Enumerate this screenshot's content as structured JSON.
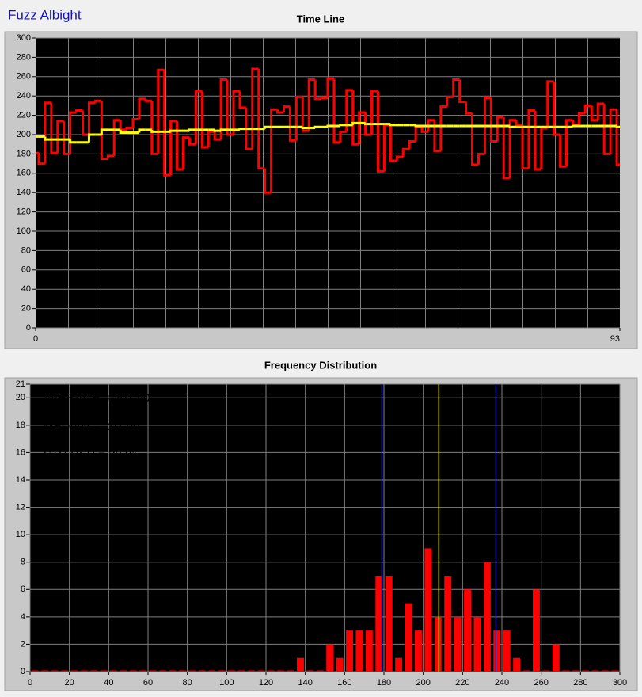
{
  "window_title": "Fuzz Albight",
  "chart_data": [
    {
      "type": "line",
      "title": "Time Line",
      "x": [
        0,
        1,
        2,
        3,
        4,
        5,
        6,
        7,
        8,
        9,
        10,
        11,
        12,
        13,
        14,
        15,
        16,
        17,
        18,
        19,
        20,
        21,
        22,
        23,
        24,
        25,
        26,
        27,
        28,
        29,
        30,
        31,
        32,
        33,
        34,
        35,
        36,
        37,
        38,
        39,
        40,
        41,
        42,
        43,
        44,
        45,
        46,
        47,
        48,
        49,
        50,
        51,
        52,
        53,
        54,
        55,
        56,
        57,
        58,
        59,
        60,
        61,
        62,
        63,
        64,
        65,
        66,
        67,
        68,
        69,
        70,
        71,
        72,
        73,
        74,
        75,
        76,
        77,
        78,
        79,
        80,
        81,
        82,
        83,
        84,
        85,
        86,
        87,
        88,
        89,
        90,
        91,
        92,
        93
      ],
      "series": [
        {
          "color": "#ff0000",
          "values": [
            181,
            170,
            233,
            181,
            214,
            180,
            223,
            225,
            200,
            233,
            235,
            175,
            178,
            215,
            205,
            207,
            216,
            237,
            235,
            180,
            267,
            158,
            214,
            164,
            197,
            190,
            245,
            187,
            203,
            195,
            257,
            200,
            245,
            228,
            185,
            268,
            165,
            140,
            226,
            223,
            229,
            194,
            239,
            204,
            257,
            237,
            238,
            258,
            192,
            203,
            246,
            190,
            223,
            200,
            245,
            162,
            210,
            173,
            177,
            185,
            193,
            208,
            203,
            215,
            183,
            229,
            239,
            257,
            234,
            222,
            169,
            180,
            238,
            193,
            218,
            155,
            215,
            210,
            165,
            225,
            164,
            207,
            255,
            200,
            167,
            215,
            210,
            222,
            230,
            215,
            232,
            180,
            226,
            169
          ]
        },
        {
          "color": "#ffff00",
          "values": [
            198,
            198,
            195,
            195,
            195,
            195,
            192,
            192,
            192,
            200,
            200,
            205,
            205,
            205,
            202,
            202,
            202,
            205,
            205,
            203,
            203,
            203,
            204,
            204,
            204,
            205,
            205,
            205,
            205,
            204,
            205,
            205,
            205,
            206,
            206,
            206,
            206,
            208,
            208,
            208,
            208,
            208,
            208,
            207,
            207,
            208,
            208,
            209,
            209,
            210,
            210,
            212,
            212,
            211,
            211,
            211,
            211,
            210,
            210,
            210,
            210,
            209,
            209,
            209,
            209,
            209,
            209,
            209,
            209,
            209,
            209,
            209,
            209,
            209,
            209,
            209,
            208,
            208,
            208,
            208,
            208,
            208,
            208,
            208,
            208,
            208,
            209,
            209,
            209,
            209,
            209,
            209,
            209,
            208
          ]
        }
      ],
      "xlim": [
        0,
        93
      ],
      "xticks": [
        0,
        93
      ],
      "ylim": [
        0,
        300
      ],
      "yticks": [
        0,
        20,
        40,
        60,
        80,
        100,
        120,
        140,
        160,
        180,
        200,
        220,
        240,
        260,
        280,
        300
      ],
      "grid": true
    },
    {
      "type": "histogram",
      "title": "Frequency Distribution",
      "bins": [
        0,
        5,
        10,
        15,
        20,
        25,
        30,
        35,
        40,
        45,
        50,
        55,
        60,
        65,
        70,
        75,
        80,
        85,
        90,
        95,
        100,
        105,
        110,
        115,
        120,
        125,
        130,
        135,
        140,
        145,
        150,
        155,
        160,
        165,
        170,
        175,
        180,
        185,
        190,
        195,
        200,
        205,
        210,
        215,
        220,
        225,
        230,
        235,
        240,
        245,
        250,
        255,
        260,
        265,
        270,
        275,
        280,
        285,
        290,
        295,
        300
      ],
      "values": [
        0,
        0,
        0,
        0,
        0,
        0,
        0,
        0,
        0,
        0,
        0,
        0,
        0,
        0,
        0,
        0,
        0,
        0,
        0,
        0,
        0,
        0,
        0,
        0,
        0,
        0,
        0,
        1,
        0,
        0,
        2,
        1,
        3,
        3,
        3,
        7,
        7,
        1,
        5,
        3,
        9,
        4,
        7,
        4,
        6,
        4,
        8,
        3,
        3,
        1,
        0,
        6,
        0,
        2,
        0,
        0,
        0,
        0,
        0,
        0
      ],
      "color": "#ff0000",
      "vlines": [
        {
          "value": 207.9,
          "color": "#ffff00"
        },
        {
          "value": 178.89,
          "color": "#1a1aa0"
        },
        {
          "value": 236.91,
          "color": "#1a1aa0"
        }
      ],
      "annotations": [
        {
          "text": "AVERAGE = 207.90",
          "color": "#ffff00"
        },
        {
          "text": "MEDIAN = 207.00",
          "color": "#ffa020"
        },
        {
          "text": "STD DEV = 29.01",
          "color": "#1a1aa0"
        }
      ],
      "xlim": [
        0,
        300
      ],
      "xticks": [
        0,
        20,
        40,
        60,
        80,
        100,
        120,
        140,
        160,
        180,
        200,
        220,
        240,
        260,
        280,
        300
      ],
      "ylim": [
        0,
        21
      ],
      "yticks": [
        0,
        2,
        4,
        6,
        8,
        10,
        12,
        14,
        16,
        18,
        20,
        21
      ],
      "grid": true
    }
  ]
}
